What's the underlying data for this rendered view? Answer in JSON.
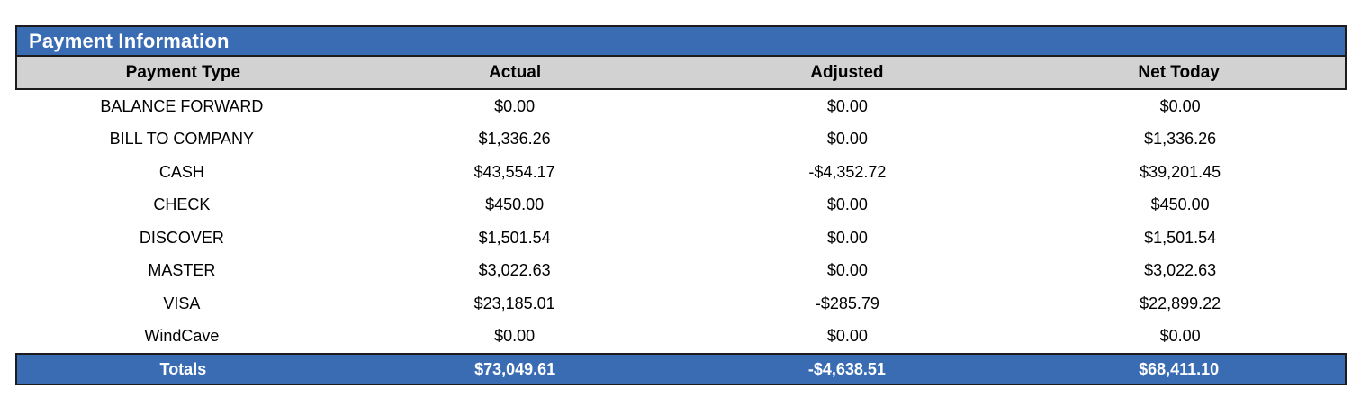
{
  "title": "Payment Information",
  "table": {
    "columns": [
      "Payment Type",
      "Actual",
      "Adjusted",
      "Net Today"
    ],
    "rows": [
      {
        "type": "BALANCE FORWARD",
        "actual": "$0.00",
        "adjusted": "$0.00",
        "net": "$0.00"
      },
      {
        "type": "BILL TO COMPANY",
        "actual": "$1,336.26",
        "adjusted": "$0.00",
        "net": "$1,336.26"
      },
      {
        "type": "CASH",
        "actual": "$43,554.17",
        "adjusted": "-$4,352.72",
        "net": "$39,201.45"
      },
      {
        "type": "CHECK",
        "actual": "$450.00",
        "adjusted": "$0.00",
        "net": "$450.00"
      },
      {
        "type": "DISCOVER",
        "actual": "$1,501.54",
        "adjusted": "$0.00",
        "net": "$1,501.54"
      },
      {
        "type": "MASTER",
        "actual": "$3,022.63",
        "adjusted": "$0.00",
        "net": "$3,022.63"
      },
      {
        "type": "VISA",
        "actual": "$23,185.01",
        "adjusted": "-$285.79",
        "net": "$22,899.22"
      },
      {
        "type": "WindCave",
        "actual": "$0.00",
        "adjusted": "$0.00",
        "net": "$0.00"
      }
    ],
    "totals": {
      "label": "Totals",
      "actual": "$73,049.61",
      "adjusted": "-$4,638.51",
      "net": "$68,411.10"
    }
  },
  "colors": {
    "accent_blue": "#3A6CB3",
    "header_gray": "#D2D2D2",
    "border": "#1C1C1C"
  }
}
